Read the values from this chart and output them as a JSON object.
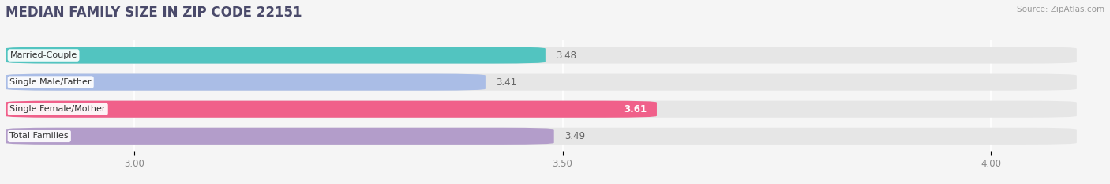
{
  "title": "MEDIAN FAMILY SIZE IN ZIP CODE 22151",
  "source": "Source: ZipAtlas.com",
  "categories": [
    "Married-Couple",
    "Single Male/Father",
    "Single Female/Mother",
    "Total Families"
  ],
  "values": [
    3.48,
    3.41,
    3.61,
    3.49
  ],
  "bar_colors": [
    "#52c4c0",
    "#aabde6",
    "#f0608a",
    "#b39dca"
  ],
  "background_color": "#f5f5f5",
  "bar_bg_color": "#e6e6e6",
  "xlim_left": 2.85,
  "xlim_right": 4.1,
  "xticks": [
    3.0,
    3.5,
    4.0
  ],
  "title_color": "#4a4a6a",
  "source_color": "#999999",
  "title_fontsize": 12,
  "bar_height": 0.62,
  "label_inside_bar": [
    false,
    false,
    true,
    false
  ],
  "value_label_color_inside": "#ffffff",
  "value_label_color_outside": "#666666"
}
